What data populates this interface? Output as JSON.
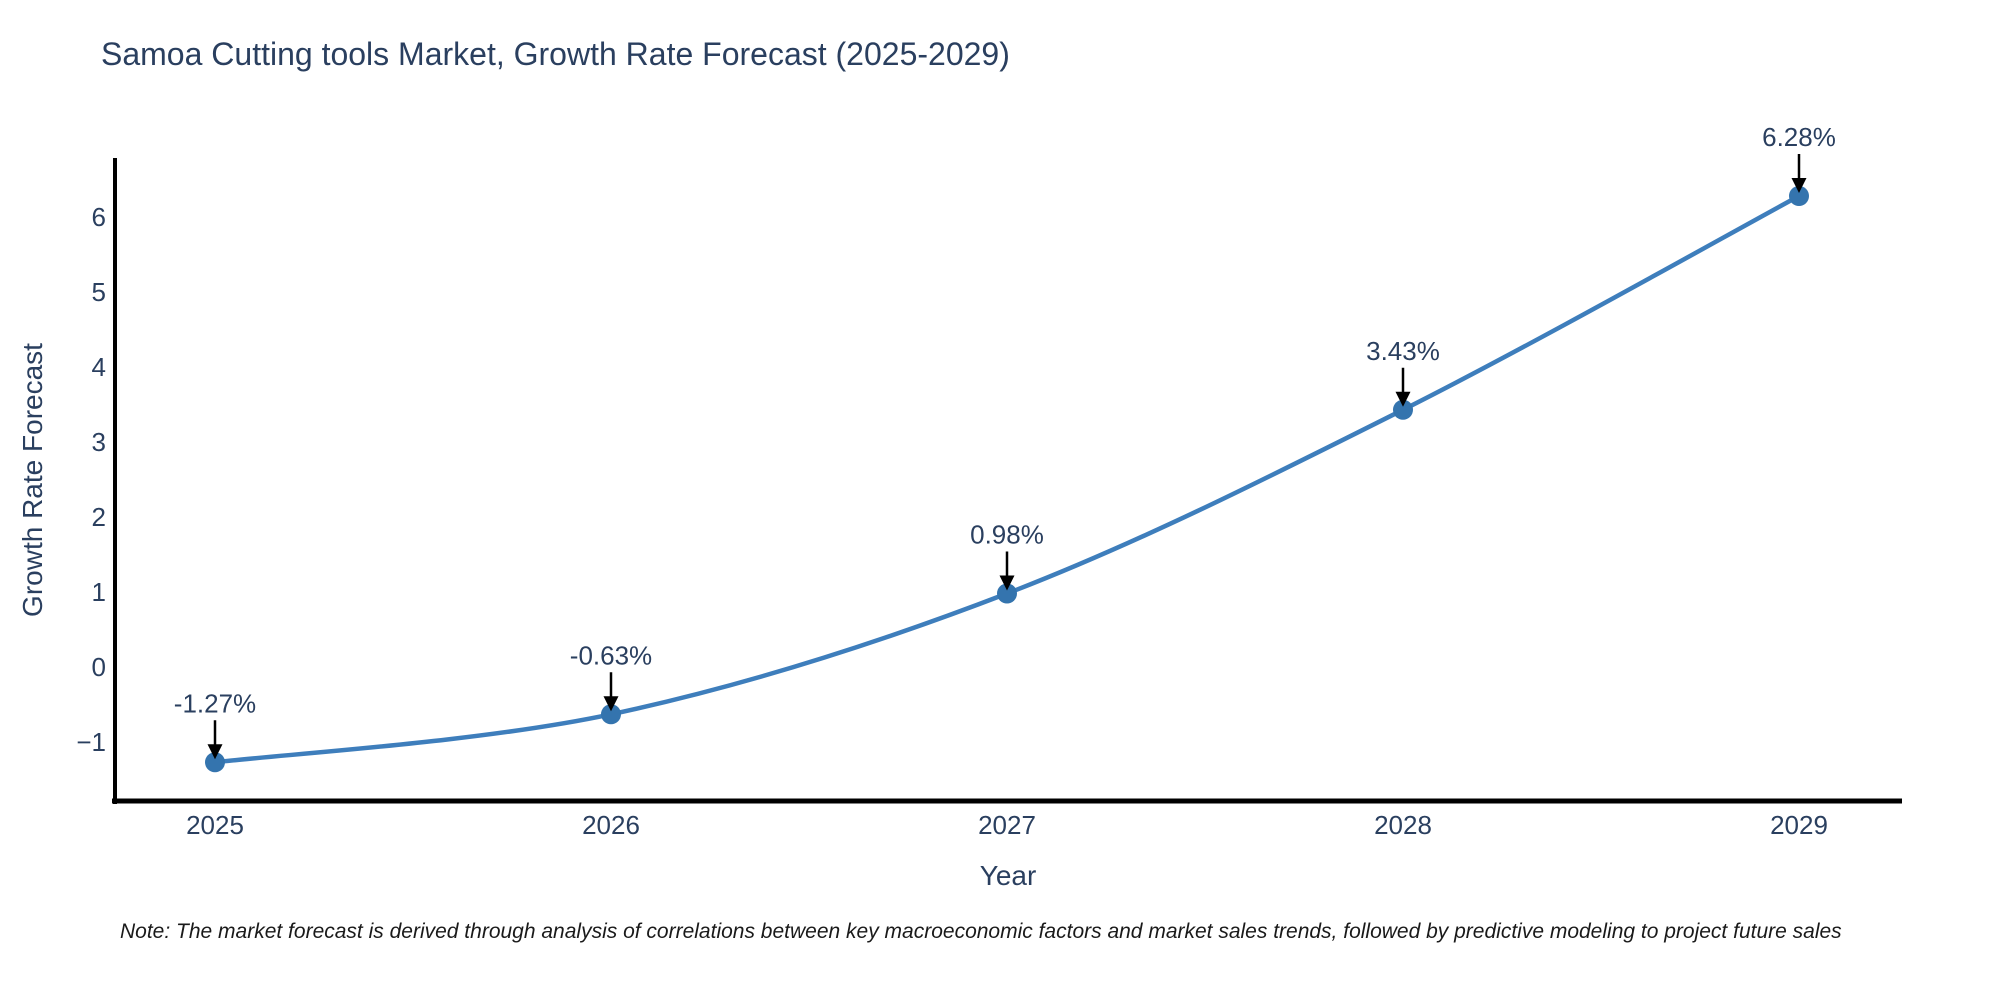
{
  "page": {
    "background": "#ffffff"
  },
  "chart": {
    "title": "Samoa Cutting tools Market, Growth Rate Forecast (2025-2029)",
    "xlabel": "Year",
    "ylabel": "Growth Rate Forecast",
    "note": "Note: The market forecast is derived through analysis of correlations between key macroeconomic factors and market sales trends, followed by predictive modeling to project future sales"
  },
  "chart_data": {
    "type": "line",
    "title": "Samoa Cutting tools Market, Growth Rate Forecast (2025-2029)",
    "xlabel": "Year",
    "ylabel": "Growth Rate Forecast",
    "x": [
      2025,
      2026,
      2027,
      2028,
      2029
    ],
    "y": [
      -1.27,
      -0.63,
      0.98,
      3.43,
      6.28
    ],
    "point_labels": [
      "-1.27%",
      "-0.63%",
      "0.98%",
      "3.43%",
      "6.28%"
    ],
    "yticks": [
      -1,
      0,
      1,
      2,
      3,
      4,
      5,
      6
    ],
    "xticks": [
      2025,
      2026,
      2027,
      2028,
      2029
    ],
    "xlim": [
      2024.75,
      2029.26
    ],
    "ylim": [
      -1.79,
      6.79
    ],
    "grid": false,
    "legend": false,
    "marker": "circle",
    "annotation_style": "value-above-with-down-arrow",
    "colors": {
      "line": "#3e7ebc",
      "marker": "#3474ae",
      "axis": "#000000",
      "tick_text": "#2a3f5f",
      "annotation_text": "#2a3f5f",
      "arrow": "#000000",
      "title_text": "#2a3f5f"
    },
    "note": "Note: The market forecast is derived through analysis of correlations between key macroeconomic factors and market sales trends, followed by predictive modeling to project future sales"
  }
}
